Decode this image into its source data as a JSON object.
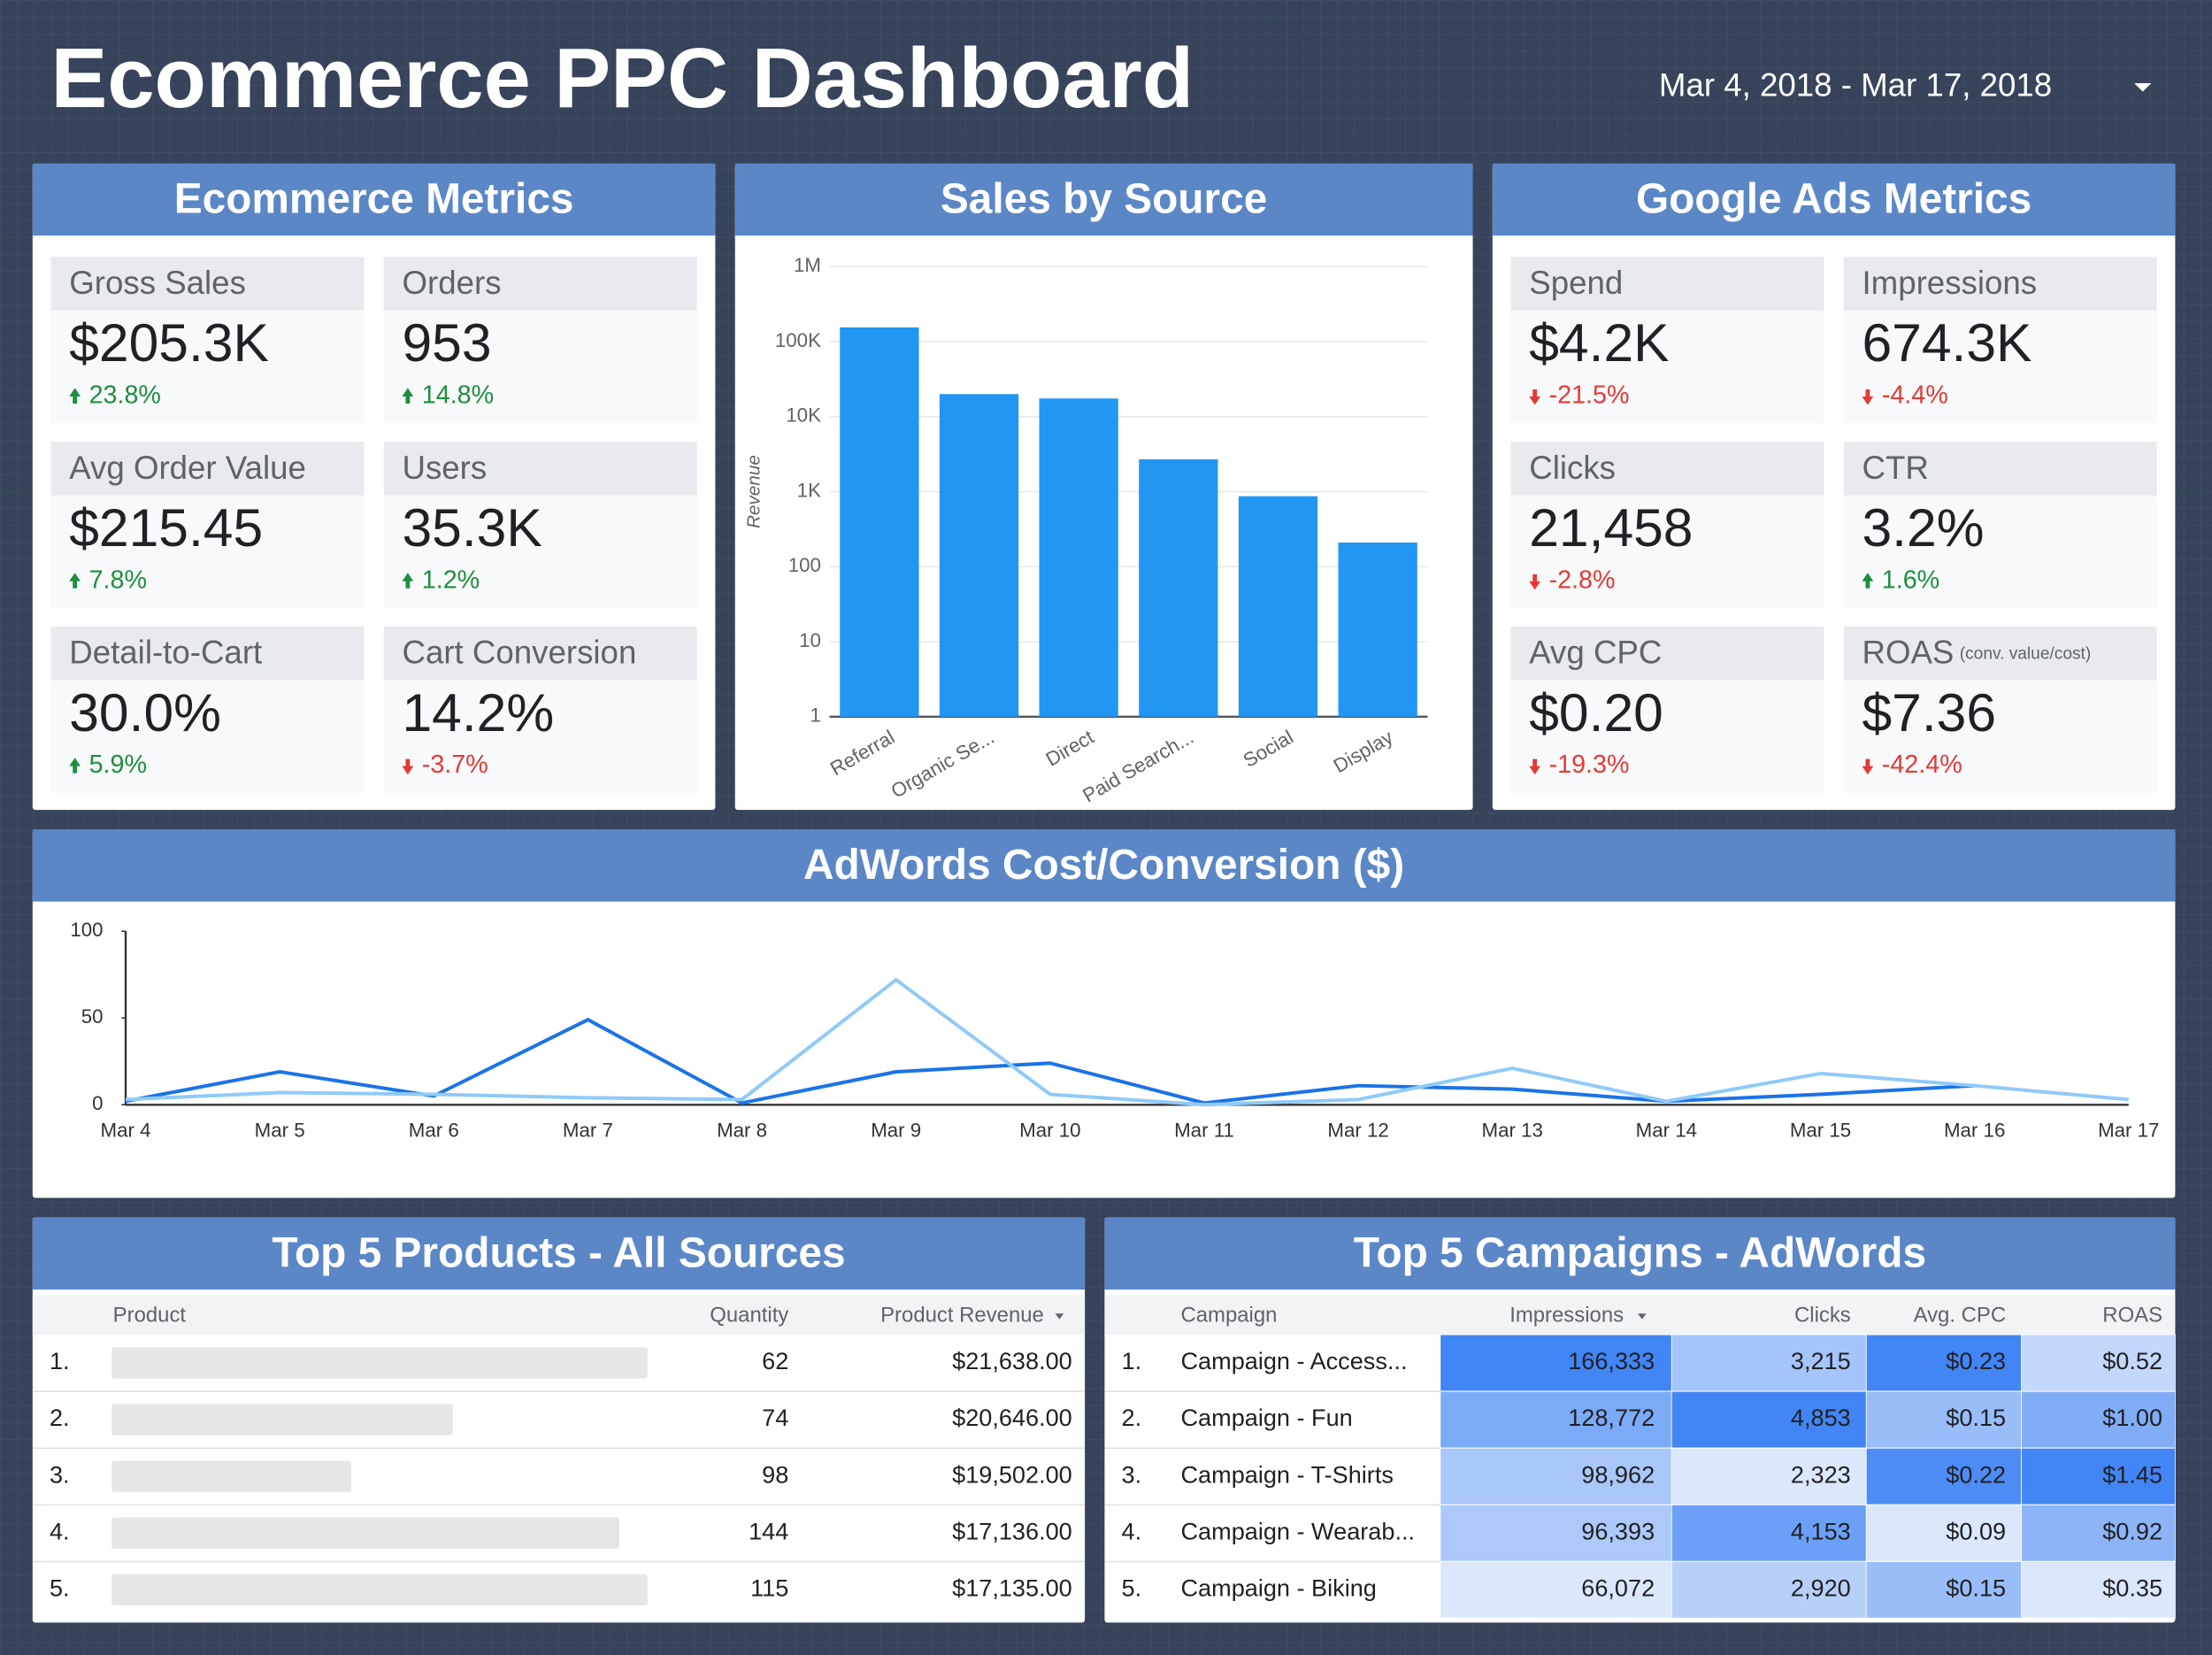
{
  "header": {
    "title": "Ecommerce PPC Dashboard",
    "date_range": "Mar 4, 2018 - Mar 17, 2018"
  },
  "trend_colors": {
    "up": "#1e8e3e",
    "down": "#e53935"
  },
  "ecommerce_metrics": {
    "title": "Ecommerce Metrics",
    "metrics": [
      {
        "label": "Gross Sales",
        "value": "$205.3K",
        "change": "23.8%",
        "trend": "up"
      },
      {
        "label": "Orders",
        "value": "953",
        "change": "14.8%",
        "trend": "up"
      },
      {
        "label": "Avg Order Value",
        "value": "$215.45",
        "change": "7.8%",
        "trend": "up"
      },
      {
        "label": "Users",
        "value": "35.3K",
        "change": "1.2%",
        "trend": "up"
      },
      {
        "label": "Detail-to-Cart",
        "value": "30.0%",
        "change": "5.9%",
        "trend": "up"
      },
      {
        "label": "Cart Conversion",
        "value": "14.2%",
        "change": "-3.7%",
        "trend": "down"
      }
    ]
  },
  "google_ads_metrics": {
    "title": "Google Ads Metrics",
    "metrics": [
      {
        "label": "Spend",
        "value": "$4.2K",
        "change": "-21.5%",
        "trend": "down"
      },
      {
        "label": "Impressions",
        "value": "674.3K",
        "change": "-4.4%",
        "trend": "down"
      },
      {
        "label": "Clicks",
        "value": "21,458",
        "change": "-2.8%",
        "trend": "down"
      },
      {
        "label": "CTR",
        "value": "3.2%",
        "change": "1.6%",
        "trend": "up"
      },
      {
        "label": "Avg CPC",
        "value": "$0.20",
        "change": "-19.3%",
        "trend": "down"
      },
      {
        "label": "ROAS",
        "note": "(conv. value/cost)",
        "value": "$7.36",
        "change": "-42.4%",
        "trend": "down"
      }
    ]
  },
  "chart_data": [
    {
      "type": "bar",
      "title": "Sales by Source",
      "y_label": "Revenue",
      "log_scale": true,
      "color": "#2196f3",
      "categories": [
        "Referral",
        "Organic Se...",
        "Direct",
        "Paid Search...",
        "Social",
        "Display"
      ],
      "values": [
        155000,
        20000,
        17500,
        2700,
        870,
        210
      ],
      "ylim": [
        1,
        1000000
      ],
      "yticks": [
        1,
        10,
        100,
        {
          "value": 1000,
          "label": "1K"
        },
        {
          "value": 10000,
          "label": "10K"
        },
        {
          "value": 100000,
          "label": "100K"
        },
        {
          "value": 1000000,
          "label": "1M"
        }
      ],
      "grid": true
    },
    {
      "type": "line",
      "title": "AdWords Cost/Conversion ($)",
      "categories": [
        "Mar 4",
        "Mar 5",
        "Mar 6",
        "Mar 7",
        "Mar 8",
        "Mar 9",
        "Mar 10",
        "Mar 11",
        "Mar 12",
        "Mar 13",
        "Mar 14",
        "Mar 15",
        "Mar 16",
        "Mar 17"
      ],
      "series": [
        {
          "color": "#1a73e8",
          "values": [
            2,
            19,
            5,
            49,
            1,
            19,
            24,
            1,
            11,
            9,
            2,
            6,
            11,
            null
          ]
        },
        {
          "color": "#90caf9",
          "values": [
            3,
            7,
            6,
            4,
            3,
            72,
            6,
            0,
            3,
            21,
            2,
            18,
            11,
            3
          ]
        }
      ],
      "ylim": [
        0,
        100
      ],
      "yticks": [
        0,
        50,
        100
      ],
      "grid": false
    }
  ],
  "top_products": {
    "title": "Top 5 Products - All Sources",
    "columns": [
      "Product",
      "Quantity",
      "Product Revenue"
    ],
    "rows": [
      [
        "1.",
        62,
        "$21,638.00"
      ],
      [
        "2.",
        74,
        "$20,646.00"
      ],
      [
        "3.",
        98,
        "$19,502.00"
      ],
      [
        "4.",
        144,
        "$17,136.00"
      ],
      [
        "5.",
        115,
        "$17,135.00"
      ]
    ]
  },
  "top_campaigns": {
    "title": "Top 5 Campaigns - AdWords",
    "heatmap": true,
    "columns": [
      "Campaign",
      "Impressions",
      "Clicks",
      "Avg. CPC",
      "ROAS"
    ],
    "rows": [
      [
        "1.",
        "Campaign - Access...",
        "166,333",
        "3,215",
        "$0.23",
        "$0.52"
      ],
      [
        "2.",
        "Campaign - Fun",
        "128,772",
        "4,853",
        "$0.15",
        "$1.00"
      ],
      [
        "3.",
        "Campaign - T-Shirts",
        "98,962",
        "2,323",
        "$0.22",
        "$1.45"
      ],
      [
        "4.",
        "Campaign - Wearab...",
        "96,393",
        "4,153",
        "$0.09",
        "$0.92"
      ],
      [
        "5.",
        "Campaign - Biking",
        "66,072",
        "2,920",
        "$0.15",
        "$0.35"
      ]
    ]
  }
}
